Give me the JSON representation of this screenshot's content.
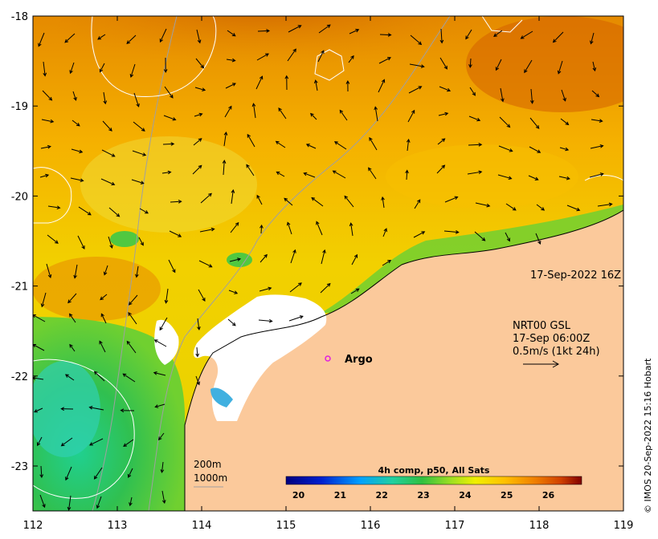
{
  "axes": {
    "x_ticks": [
      "112",
      "113",
      "114",
      "115",
      "116",
      "117",
      "118",
      "119"
    ],
    "y_ticks": [
      "-18",
      "-19",
      "-20",
      "-21",
      "-22",
      "-23"
    ]
  },
  "timestamp": "17-Sep-2022 16Z",
  "current_product": {
    "line1": "NRT00 GSL",
    "line2": "17-Sep 06:00Z",
    "line3": "0.5m/s (1kt 24h)"
  },
  "argo": {
    "label": "Argo",
    "color": "#e020e0"
  },
  "bathymetry": {
    "label_200": "200m",
    "label_1000": "1000m"
  },
  "colorbar": {
    "title": "4h comp, p50, All Sats",
    "ticks": [
      "20",
      "21",
      "22",
      "23",
      "24",
      "25",
      "26"
    ],
    "range": [
      19.7,
      26.8
    ]
  },
  "credit": "© IMOS 20-Sep-2022 15:16 Hobart",
  "colors": {
    "land": "#fbc99b",
    "cloud": "#ffffff",
    "warm": "#e07a00",
    "cool": "#3cc060"
  }
}
